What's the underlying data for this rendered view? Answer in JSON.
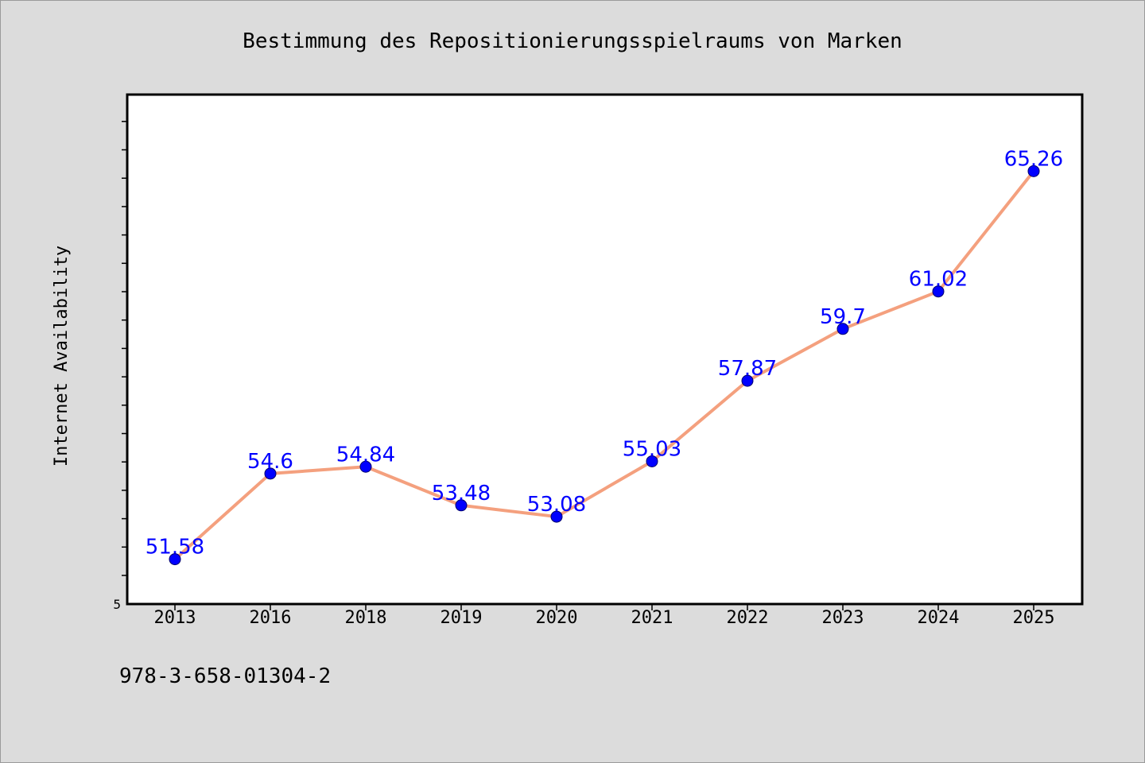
{
  "chart_data": {
    "type": "line",
    "title": "Bestimmung des Repositionierungsspielraums von Marken",
    "xlabel": "",
    "ylabel": "Internet Availability",
    "categories": [
      "2013",
      "2016",
      "2018",
      "2019",
      "2020",
      "2021",
      "2022",
      "2023",
      "2024",
      "2025"
    ],
    "series": [
      {
        "values": [
          51.58,
          54.6,
          54.84,
          53.48,
          53.08,
          55.03,
          57.87,
          59.7,
          61.02,
          65.26
        ],
        "labels": [
          "51.58",
          "54.6",
          "54.84",
          "53.48",
          "53.08",
          "55.03",
          "57.87",
          "59.7",
          "61.02",
          "65.26"
        ]
      }
    ],
    "y_tick_labels": [
      "5"
    ],
    "ylim": [
      50.0,
      67.96
    ],
    "grid": false,
    "legend": "none",
    "colors": {
      "line": "#f4a07e",
      "marker": "#0000ff",
      "data_label": "#0000ff",
      "plot_background": "#ffffff",
      "page_background": "#dcdcdc"
    }
  },
  "footer": {
    "isbn": "978-3-658-01304-2"
  }
}
